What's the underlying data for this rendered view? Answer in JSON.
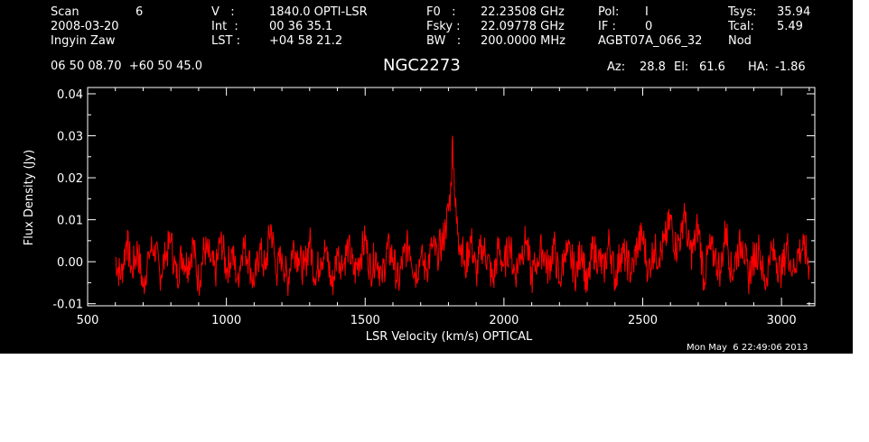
{
  "header": {
    "rows": [
      [
        "Scan",
        "6",
        "V   :",
        "1840.0 OPTI-LSR",
        "F0   :",
        "22.23508 GHz",
        "Pol:",
        "I",
        "Tsys:",
        "35.94"
      ],
      [
        "2008-03-20",
        "",
        "Int  :",
        "00 36 35.1",
        "Fsky :",
        "22.09778 GHz",
        "IF :",
        "0",
        "Tcal:",
        "5.49"
      ],
      [
        "Ingyin Zaw",
        "",
        "LST :",
        "+04 58 21.2",
        "BW   :",
        "200.0000 MHz",
        "AGBT07A_066_32",
        "",
        "Nod",
        ""
      ]
    ],
    "coords": "06 50 08.70  +60 50 45.0",
    "source": "NGC2273",
    "az_label": "Az:",
    "az": "28.8",
    "el_label": "El:",
    "el": "61.6",
    "ha_label": "HA:",
    "ha": "-1.86",
    "timestamp": "Mon May  6 22:49:06 2013"
  },
  "colors": {
    "background": "#000000",
    "axes": "#ffffff",
    "series": "#ff0000"
  },
  "chart_data": {
    "type": "line",
    "title": "NGC2273",
    "xlabel": "LSR Velocity (km/s) OPTICAL",
    "ylabel": "Flux Density (Jy)",
    "xlim": [
      500,
      3120
    ],
    "ylim": [
      -0.0105,
      0.0415
    ],
    "xticks": [
      500,
      1000,
      1500,
      2000,
      2500,
      3000
    ],
    "xtick_labels": [
      "500",
      "1000",
      "1500",
      "2000",
      "2500",
      "3000"
    ],
    "yticks": [
      -0.01,
      0.0,
      0.01,
      0.02,
      0.03,
      0.04
    ],
    "ytick_labels": [
      "-0.01",
      "0.00",
      "0.01",
      "0.02",
      "0.03",
      "0.04"
    ],
    "grid": false,
    "series": [
      {
        "name": "",
        "x": [
          600,
          620,
          640,
          660,
          680,
          700,
          720,
          740,
          760,
          780,
          800,
          820,
          840,
          860,
          880,
          900,
          920,
          940,
          960,
          980,
          1000,
          1020,
          1040,
          1060,
          1080,
          1100,
          1120,
          1140,
          1160,
          1180,
          1200,
          1220,
          1240,
          1260,
          1280,
          1300,
          1320,
          1340,
          1360,
          1380,
          1400,
          1420,
          1440,
          1460,
          1480,
          1500,
          1520,
          1540,
          1560,
          1580,
          1600,
          1620,
          1640,
          1660,
          1680,
          1700,
          1720,
          1740,
          1760,
          1780,
          1790,
          1800,
          1810,
          1815,
          1820,
          1825,
          1830,
          1835,
          1840,
          1850,
          1860,
          1880,
          1900,
          1920,
          1940,
          1960,
          1980,
          2000,
          2020,
          2040,
          2060,
          2080,
          2100,
          2120,
          2140,
          2160,
          2180,
          2200,
          2220,
          2240,
          2260,
          2280,
          2300,
          2320,
          2340,
          2360,
          2380,
          2400,
          2420,
          2440,
          2460,
          2480,
          2500,
          2520,
          2540,
          2560,
          2580,
          2600,
          2620,
          2640,
          2650,
          2660,
          2680,
          2700,
          2720,
          2740,
          2760,
          2780,
          2800,
          2820,
          2840,
          2860,
          2880,
          2900,
          2920,
          2940,
          2960,
          2980,
          3000,
          3020,
          3040,
          3060,
          3080,
          3100
        ],
        "y": [
          0.001,
          -0.004,
          0.005,
          -0.002,
          0.003,
          -0.006,
          0.002,
          0.004,
          -0.003,
          0.001,
          0.005,
          -0.004,
          0.002,
          -0.001,
          0.004,
          -0.005,
          0.003,
          0.001,
          -0.003,
          0.006,
          -0.002,
          0.002,
          -0.004,
          0.004,
          0.001,
          -0.006,
          0.003,
          -0.002,
          0.009,
          -0.003,
          0.002,
          -0.005,
          0.004,
          0.001,
          -0.002,
          0.005,
          -0.004,
          0.001,
          0.003,
          -0.006,
          0.002,
          -0.001,
          0.004,
          -0.003,
          0.001,
          0.005,
          -0.002,
          0.002,
          -0.004,
          0.003,
          0.001,
          -0.005,
          0.002,
          0.004,
          -0.003,
          0.001,
          -0.002,
          0.003,
          0.002,
          0.005,
          0.008,
          0.012,
          0.018,
          0.03,
          0.022,
          0.013,
          0.009,
          0.007,
          0.004,
          0.003,
          -0.002,
          0.006,
          -0.003,
          0.004,
          0.001,
          -0.005,
          0.003,
          -0.001,
          0.004,
          -0.003,
          0.002,
          0.005,
          -0.004,
          0.001,
          0.003,
          -0.002,
          0.004,
          -0.005,
          0.002,
          0.001,
          -0.003,
          0.004,
          -0.007,
          0.003,
          0.001,
          -0.002,
          0.005,
          -0.004,
          0.002,
          0.001,
          -0.003,
          0.004,
          0.006,
          -0.002,
          0.003,
          0.001,
          0.005,
          0.01,
          0.003,
          0.007,
          0.014,
          0.004,
          0.002,
          0.009,
          -0.004,
          0.003,
          0.001,
          -0.002,
          0.008,
          -0.003,
          0.002,
          0.005,
          -0.004,
          0.001,
          0.003,
          -0.006,
          0.002,
          0.001,
          -0.003,
          0.004,
          -0.002,
          0.002,
          0.004,
          -0.001
        ]
      }
    ]
  }
}
